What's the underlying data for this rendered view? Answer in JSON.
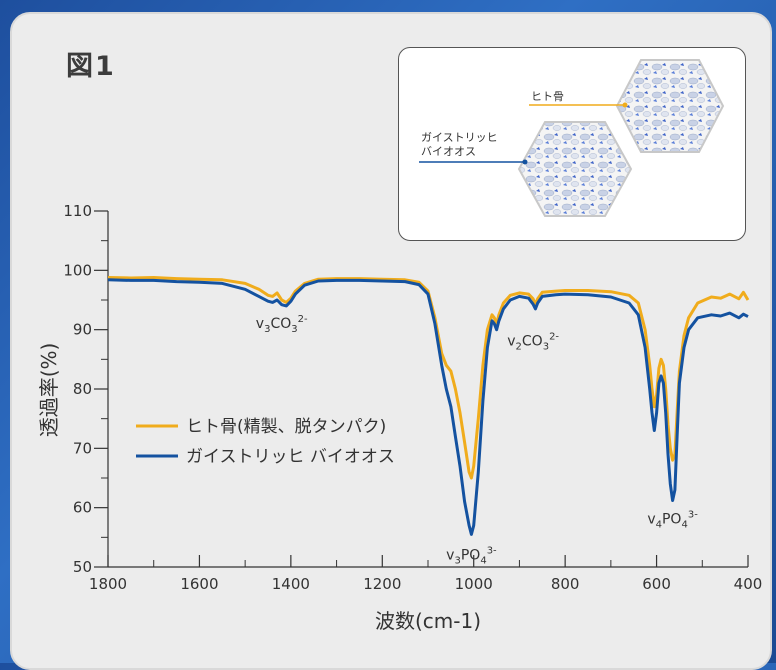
{
  "figure_title": "図1",
  "inset": {
    "label_top": "ヒト骨",
    "label_bottom_line1": "ガイストリッヒ",
    "label_bottom_line2": "バイオオス"
  },
  "colors": {
    "human_bone": "#f0ac1c",
    "bio_oss": "#1452a0",
    "frame_bg": "#2860b8"
  },
  "chart_data": {
    "type": "line",
    "xlabel": "波数(cm-1)",
    "ylabel": "透過率(%)",
    "xlim": [
      1800,
      400
    ],
    "ylim": [
      50,
      110
    ],
    "x_ticks": [
      1800,
      1600,
      1400,
      1200,
      1000,
      800,
      600,
      400
    ],
    "y_ticks": [
      50,
      60,
      70,
      80,
      90,
      100,
      110
    ],
    "grid": false,
    "legend_position": "center-left",
    "annotations": [
      {
        "text": "v3CO32-",
        "x": 1420,
        "y": 94
      },
      {
        "text": "v2CO32-",
        "x": 870,
        "y": 91
      },
      {
        "text": "v3PO43-",
        "x": 1005,
        "y": 55
      },
      {
        "text": "v4PO43-",
        "x": 565,
        "y": 61
      }
    ],
    "series": [
      {
        "name": "ヒト骨(精製、脱タンパク)",
        "color": "#f0ac1c",
        "points": [
          [
            1800,
            98.8
          ],
          [
            1750,
            98.7
          ],
          [
            1700,
            98.8
          ],
          [
            1650,
            98.6
          ],
          [
            1600,
            98.5
          ],
          [
            1550,
            98.4
          ],
          [
            1500,
            97.8
          ],
          [
            1470,
            96.8
          ],
          [
            1450,
            95.8
          ],
          [
            1440,
            95.6
          ],
          [
            1430,
            96.2
          ],
          [
            1420,
            95.0
          ],
          [
            1410,
            94.6
          ],
          [
            1400,
            95.3
          ],
          [
            1390,
            96.5
          ],
          [
            1370,
            97.8
          ],
          [
            1340,
            98.5
          ],
          [
            1300,
            98.6
          ],
          [
            1250,
            98.6
          ],
          [
            1200,
            98.5
          ],
          [
            1150,
            98.4
          ],
          [
            1120,
            98.0
          ],
          [
            1100,
            96.5
          ],
          [
            1085,
            92
          ],
          [
            1070,
            86
          ],
          [
            1060,
            84
          ],
          [
            1050,
            83
          ],
          [
            1040,
            80
          ],
          [
            1030,
            76
          ],
          [
            1020,
            71
          ],
          [
            1010,
            66
          ],
          [
            1005,
            65
          ],
          [
            1000,
            67
          ],
          [
            990,
            75
          ],
          [
            980,
            84
          ],
          [
            970,
            90
          ],
          [
            960,
            92.5
          ],
          [
            955,
            92
          ],
          [
            950,
            91
          ],
          [
            945,
            92.5
          ],
          [
            935,
            94.5
          ],
          [
            920,
            95.8
          ],
          [
            900,
            96.2
          ],
          [
            880,
            96.0
          ],
          [
            870,
            95.2
          ],
          [
            865,
            94.3
          ],
          [
            860,
            95.2
          ],
          [
            850,
            96.3
          ],
          [
            820,
            96.5
          ],
          [
            800,
            96.6
          ],
          [
            750,
            96.6
          ],
          [
            700,
            96.4
          ],
          [
            660,
            95.8
          ],
          [
            640,
            94.5
          ],
          [
            625,
            90
          ],
          [
            615,
            84
          ],
          [
            610,
            80
          ],
          [
            605,
            77
          ],
          [
            600,
            79
          ],
          [
            595,
            83.5
          ],
          [
            590,
            85
          ],
          [
            585,
            84
          ],
          [
            580,
            80
          ],
          [
            575,
            74
          ],
          [
            570,
            70
          ],
          [
            565,
            68
          ],
          [
            560,
            69
          ],
          [
            555,
            76
          ],
          [
            550,
            83
          ],
          [
            540,
            89
          ],
          [
            530,
            92
          ],
          [
            510,
            94.5
          ],
          [
            480,
            95.5
          ],
          [
            460,
            95.3
          ],
          [
            440,
            96.0
          ],
          [
            420,
            95.2
          ],
          [
            410,
            96.3
          ],
          [
            400,
            95.0
          ]
        ]
      },
      {
        "name": "ガイストリッヒ バイオオス",
        "color": "#1452a0",
        "points": [
          [
            1800,
            98.4
          ],
          [
            1750,
            98.3
          ],
          [
            1700,
            98.3
          ],
          [
            1650,
            98.1
          ],
          [
            1600,
            98.0
          ],
          [
            1550,
            97.8
          ],
          [
            1500,
            96.8
          ],
          [
            1470,
            95.6
          ],
          [
            1450,
            94.8
          ],
          [
            1440,
            94.6
          ],
          [
            1430,
            95.0
          ],
          [
            1420,
            94.2
          ],
          [
            1410,
            94.0
          ],
          [
            1400,
            94.8
          ],
          [
            1390,
            96.0
          ],
          [
            1370,
            97.5
          ],
          [
            1340,
            98.2
          ],
          [
            1300,
            98.3
          ],
          [
            1250,
            98.3
          ],
          [
            1200,
            98.2
          ],
          [
            1150,
            98.1
          ],
          [
            1120,
            97.6
          ],
          [
            1100,
            96.0
          ],
          [
            1085,
            91
          ],
          [
            1070,
            84
          ],
          [
            1060,
            80
          ],
          [
            1050,
            77
          ],
          [
            1040,
            72
          ],
          [
            1030,
            67
          ],
          [
            1020,
            61
          ],
          [
            1010,
            57
          ],
          [
            1005,
            55.5
          ],
          [
            1000,
            57
          ],
          [
            990,
            66
          ],
          [
            980,
            78
          ],
          [
            970,
            87
          ],
          [
            960,
            91.5
          ],
          [
            955,
            91
          ],
          [
            950,
            90
          ],
          [
            945,
            91.5
          ],
          [
            935,
            93.5
          ],
          [
            920,
            95.0
          ],
          [
            900,
            95.6
          ],
          [
            880,
            95.3
          ],
          [
            870,
            94.3
          ],
          [
            865,
            93.5
          ],
          [
            860,
            94.5
          ],
          [
            850,
            95.6
          ],
          [
            820,
            95.9
          ],
          [
            800,
            96.0
          ],
          [
            750,
            95.9
          ],
          [
            700,
            95.5
          ],
          [
            660,
            94.5
          ],
          [
            640,
            92.5
          ],
          [
            625,
            87
          ],
          [
            615,
            80
          ],
          [
            610,
            76
          ],
          [
            605,
            73
          ],
          [
            600,
            76
          ],
          [
            595,
            81
          ],
          [
            590,
            82.2
          ],
          [
            585,
            81
          ],
          [
            580,
            76
          ],
          [
            575,
            69
          ],
          [
            570,
            64
          ],
          [
            565,
            61.2
          ],
          [
            560,
            63
          ],
          [
            555,
            72
          ],
          [
            550,
            81
          ],
          [
            540,
            87
          ],
          [
            530,
            90
          ],
          [
            510,
            92
          ],
          [
            480,
            92.5
          ],
          [
            460,
            92.3
          ],
          [
            440,
            92.8
          ],
          [
            420,
            92.0
          ],
          [
            410,
            92.6
          ],
          [
            400,
            92.2
          ]
        ]
      }
    ]
  }
}
